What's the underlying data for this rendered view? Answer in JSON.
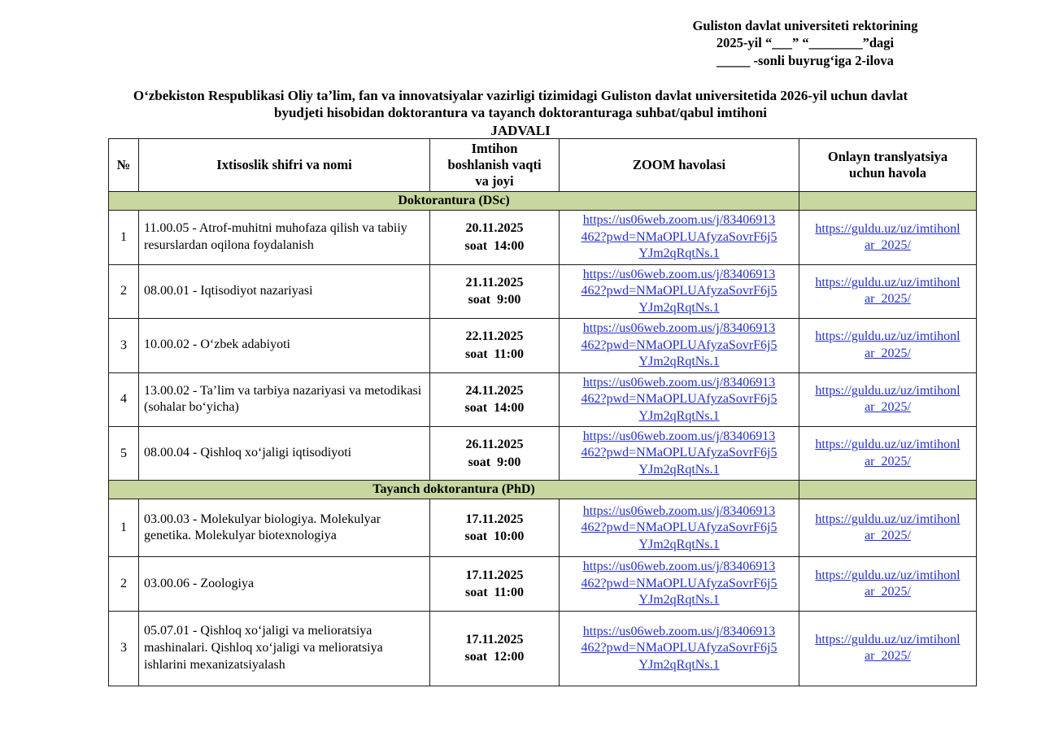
{
  "corner_note": {
    "lines": [
      "Guliston davlat universiteti rektorining",
      "2025-yil “___”  “________”dagi",
      "_____ -sonli buyrugʻiga 2-ilova"
    ]
  },
  "title": {
    "lines": [
      "Oʻzbekiston Respublikasi Oliy taʼlim, fan va innovatsiyalar vazirligi tizimidagi Guliston davlat universitetida 2026-yil uchun davlat",
      "byudjeti hisobidan doktorantura va tayanch doktoranturaga suhbat/qabul imtihoni",
      "JADVALI"
    ]
  },
  "table": {
    "columns": [
      "№",
      "Ixtisoslik shifri va nomi",
      "Imtihon\nboshlanish vaqti\nva joyi",
      "ZOOM havolasi",
      "Onlayn translyatsiya\nuchun havola"
    ],
    "zoom_url": "https://us06web.zoom.us/j/83406913462?pwd=NMaOPLUAfyzaSovrF6j5YJm2qRqtNs.1",
    "zoom_url_lines": [
      "https://us06web.zoom.us/j/83406913",
      "462?pwd=NMaOPLUAfyzaSovrF6j5",
      "YJm2qRqtNs.1"
    ],
    "stream_url": "https://guldu.uz/uz/imtihonlar_2025/",
    "stream_url_lines": [
      "https://guldu.uz/uz/imtihonl",
      "ar_2025/"
    ],
    "sections": [
      {
        "label": "Doktorantura (DSc)",
        "rows": [
          {
            "num": "1",
            "name": "11.00.05 - Atrof-muhitni muhofaza qilish va tabiiy resurslardan oqilona foydalanish",
            "date": "20.11.2025",
            "time": "soat  14:00"
          },
          {
            "num": "2",
            "name": "08.00.01 - Iqtisodiyot nazariyasi",
            "date": "21.11.2025",
            "time": "soat  9:00"
          },
          {
            "num": "3",
            "name": "10.00.02 - Oʻzbek adabiyoti",
            "date": "22.11.2025",
            "time": "soat  11:00"
          },
          {
            "num": "4",
            "name": "13.00.02 - Taʼlim va tarbiya nazariyasi va metodikasi (sohalar boʻyicha)",
            "date": "24.11.2025",
            "time": "soat  14:00"
          },
          {
            "num": "5",
            "name": "08.00.04 - Qishloq xoʻjaligi iqtisodiyoti",
            "date": "26.11.2025",
            "time": "soat  9:00"
          }
        ]
      },
      {
        "label": "Tayanch doktorantura (PhD)",
        "rows": [
          {
            "num": "1",
            "name": "03.00.03 - Molekulyar biologiya. Molekulyar genetika. Molekulyar biotexnologiya",
            "date": "17.11.2025",
            "time": "soat  10:00"
          },
          {
            "num": "2",
            "name": "03.00.06 - Zoologiya",
            "date": "17.11.2025",
            "time": "soat  11:00"
          },
          {
            "num": "3",
            "name": "05.07.01 - Qishloq xoʻjaligi va melioratsiya mashinalari. Qishloq xoʻjaligi va melioratsiya ishlarini mexanizatsiyalash",
            "date": "17.11.2025",
            "time": "soat  12:00"
          }
        ]
      }
    ]
  },
  "colors": {
    "section_band": "#c7d79f",
    "link_blue": "#2430c8"
  }
}
